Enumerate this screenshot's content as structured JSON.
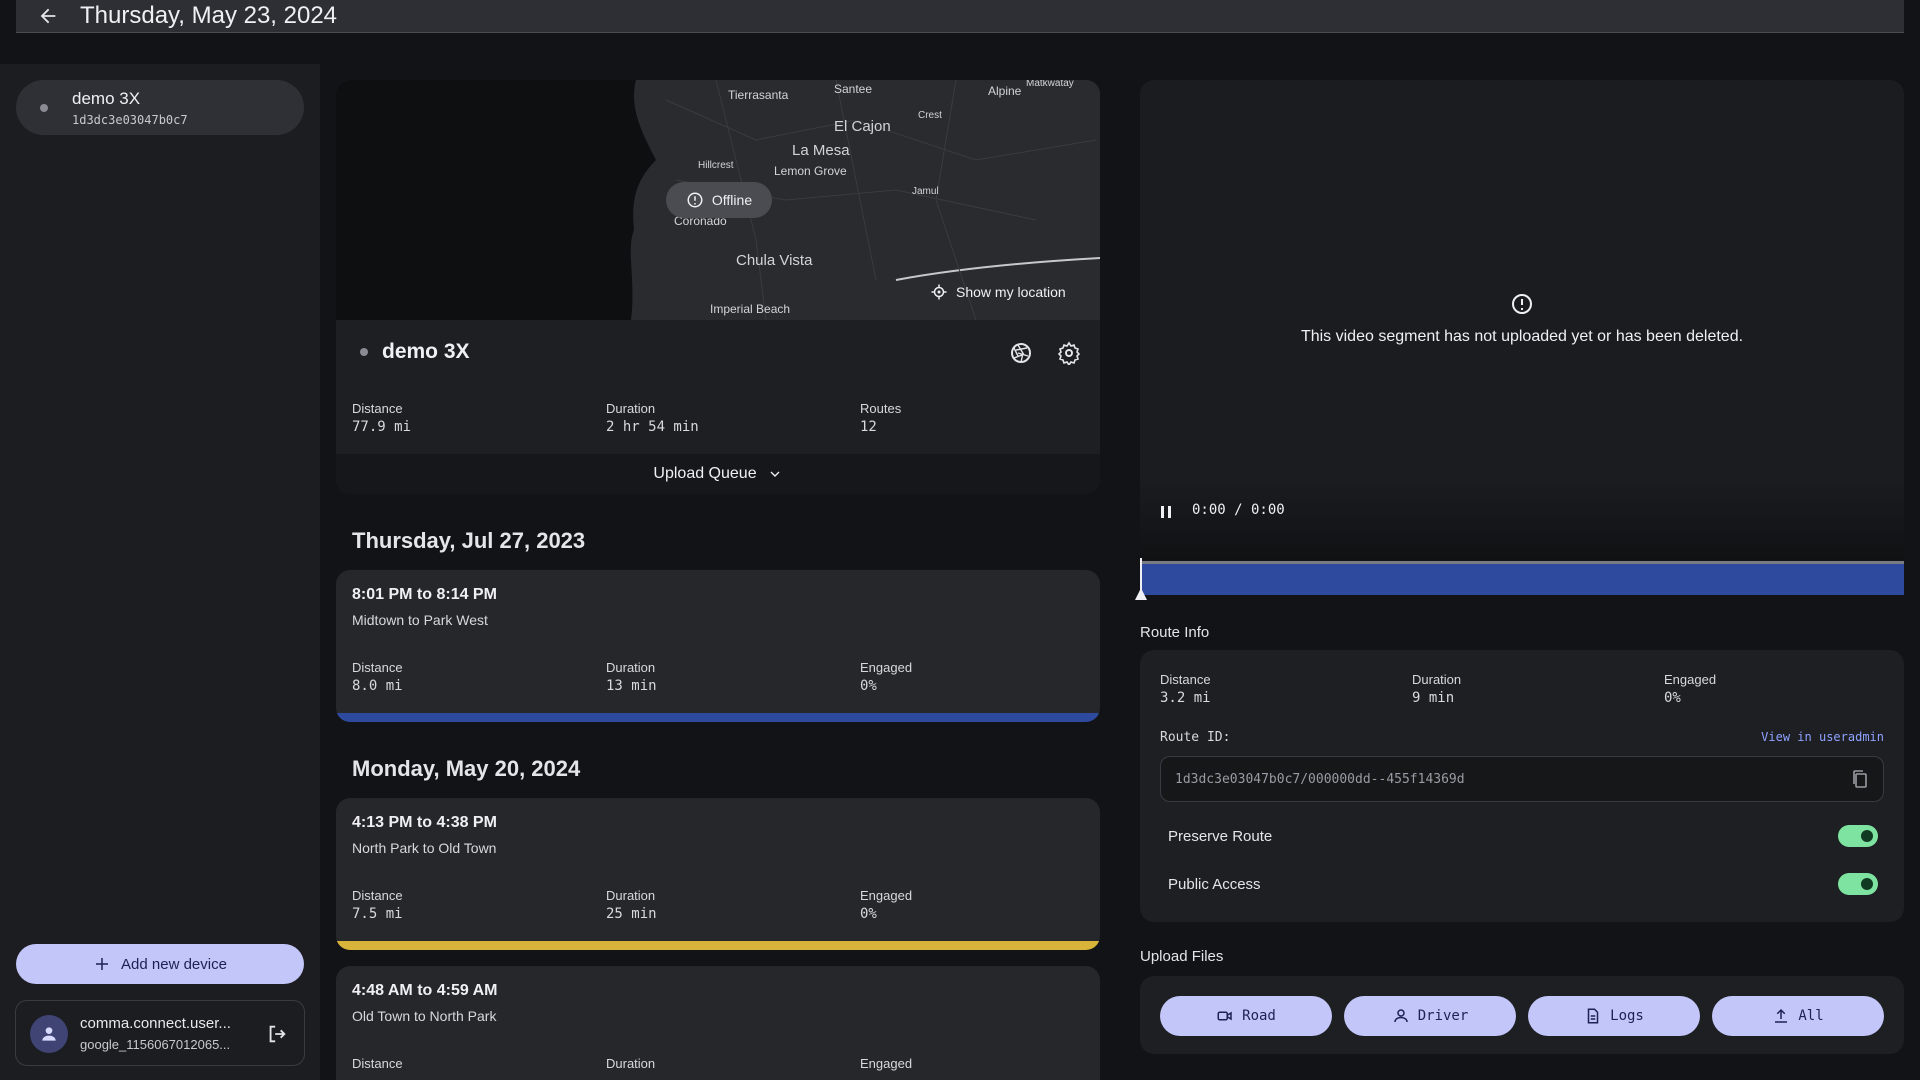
{
  "header": {
    "title": "Thursday, May 23, 2024"
  },
  "sidebar": {
    "device": {
      "name": "demo 3X",
      "id": "1d3dc3e03047b0c7"
    },
    "add_device_label": "Add new device",
    "account": {
      "name": "comma.connect.user...",
      "id": "google_1156067012065..."
    }
  },
  "map": {
    "status": "Offline",
    "show_location_label": "Show my location",
    "labels": [
      "Tierrasanta",
      "Santee",
      "Alpine",
      "Matkwatay",
      "Crest",
      "El Cajon",
      "La Mesa",
      "Hillcrest",
      "Lemon Grove",
      "Coronado",
      "Jamul",
      "Chula Vista",
      "Imperial Beach"
    ]
  },
  "device_card": {
    "name": "demo 3X",
    "stats": [
      {
        "label": "Distance",
        "value": "77.9 mi"
      },
      {
        "label": "Duration",
        "value": "2 hr 54 min"
      },
      {
        "label": "Routes",
        "value": "12"
      }
    ],
    "upload_queue_label": "Upload Queue"
  },
  "days": [
    {
      "title": "Thursday, Jul 27, 2023",
      "routes": [
        {
          "time": "8:01 PM to 8:14 PM",
          "path": "Midtown to Park West",
          "distance": "8.0 mi",
          "duration": "13 min",
          "engaged": "0%",
          "bar_color": "#2e4a9e"
        }
      ]
    },
    {
      "title": "Monday, May 20, 2024",
      "routes": [
        {
          "time": "4:13 PM to 4:38 PM",
          "path": "North Park to Old Town",
          "distance": "7.5 mi",
          "duration": "25 min",
          "engaged": "0%",
          "bar_color": "#d9b43a"
        },
        {
          "time": "4:48 AM to 4:59 AM",
          "path": "Old Town to North Park",
          "distance": "",
          "duration": "",
          "engaged": ""
        }
      ]
    }
  ],
  "stat_labels": {
    "distance": "Distance",
    "duration": "Duration",
    "engaged": "Engaged"
  },
  "video": {
    "message": "This video segment has not uploaded yet or has been deleted.",
    "time": "0:00 / 0:00"
  },
  "route_info": {
    "title": "Route Info",
    "distance": "3.2 mi",
    "duration": "9 min",
    "engaged": "0%",
    "route_id_label": "Route ID:",
    "view_link": "View in useradmin",
    "route_id": "1d3dc3e03047b0c7/000000dd--455f14369d",
    "preserve_label": "Preserve Route",
    "preserve_on": true,
    "public_label": "Public Access",
    "public_on": true
  },
  "upload_files": {
    "title": "Upload Files",
    "buttons": [
      "Road",
      "Driver",
      "Logs",
      "All"
    ]
  },
  "colors": {
    "accent": "#c2c6f8",
    "timeline": "#2e4a9e",
    "toggle_on": "#7ee3a0",
    "link": "#8ea2ff"
  }
}
